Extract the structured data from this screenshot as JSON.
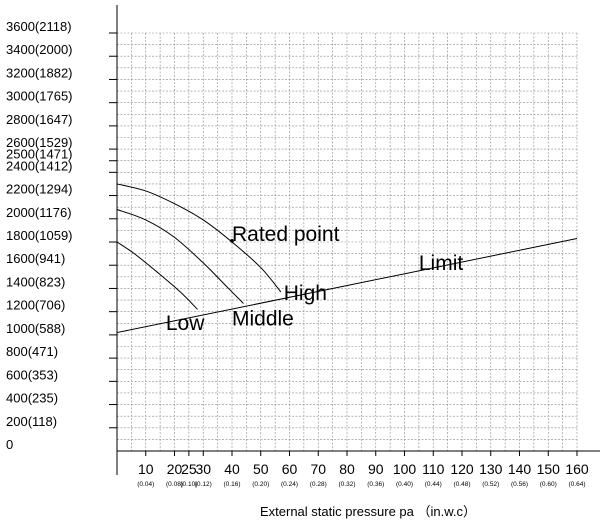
{
  "chart_data": {
    "type": "line",
    "title": "",
    "xlabel": "External static pressure pa （in.w.c）",
    "ylabel": "",
    "xlim": [
      0,
      160
    ],
    "ylim": [
      0,
      3600
    ],
    "grid": true,
    "x_ticks": [
      {
        "value": 10,
        "label": "10",
        "sub": "(0.04)"
      },
      {
        "value": 20,
        "label": "20",
        "sub": "(0.08)"
      },
      {
        "value": 25,
        "label": "25",
        "sub": "(0.10)"
      },
      {
        "value": 30,
        "label": "30",
        "sub": "(0.12)"
      },
      {
        "value": 40,
        "label": "40",
        "sub": "(0.16)"
      },
      {
        "value": 50,
        "label": "50",
        "sub": "(0.20)"
      },
      {
        "value": 60,
        "label": "60",
        "sub": "(0.24)"
      },
      {
        "value": 70,
        "label": "70",
        "sub": "(0.28)"
      },
      {
        "value": 80,
        "label": "80",
        "sub": "(0.32)"
      },
      {
        "value": 90,
        "label": "90",
        "sub": "(0.36)"
      },
      {
        "value": 100,
        "label": "100",
        "sub": "(0.40)"
      },
      {
        "value": 110,
        "label": "110",
        "sub": "(0.44)"
      },
      {
        "value": 120,
        "label": "120",
        "sub": "(0.48)"
      },
      {
        "value": 130,
        "label": "130",
        "sub": "(0.52)"
      },
      {
        "value": 140,
        "label": "140",
        "sub": "(0.56)"
      },
      {
        "value": 150,
        "label": "150",
        "sub": "(0.60)"
      },
      {
        "value": 160,
        "label": "160",
        "sub": "(0.64)"
      }
    ],
    "y_ticks": [
      {
        "value": 0,
        "label": "0"
      },
      {
        "value": 200,
        "label": "200(118)"
      },
      {
        "value": 400,
        "label": "400(235)"
      },
      {
        "value": 600,
        "label": "600(353)"
      },
      {
        "value": 800,
        "label": "800(471)"
      },
      {
        "value": 1000,
        "label": "1000(588)"
      },
      {
        "value": 1200,
        "label": "1200(706)"
      },
      {
        "value": 1400,
        "label": "1400(823)"
      },
      {
        "value": 1600,
        "label": "1600(941)"
      },
      {
        "value": 1800,
        "label": "1800(1059)"
      },
      {
        "value": 2000,
        "label": "2000(1176)"
      },
      {
        "value": 2200,
        "label": "2200(1294)"
      },
      {
        "value": 2400,
        "label": "2400(1412)"
      },
      {
        "value": 2500,
        "label": "2500(1471)"
      },
      {
        "value": 2600,
        "label": "2600(1529)"
      },
      {
        "value": 2800,
        "label": "2800(1647)"
      },
      {
        "value": 3000,
        "label": "3000(1765)"
      },
      {
        "value": 3200,
        "label": "3200(1882)"
      },
      {
        "value": 3400,
        "label": "3400(2000)"
      },
      {
        "value": 3600,
        "label": "3600(2118)"
      }
    ],
    "series": [
      {
        "name": "Low",
        "points": [
          [
            0,
            1800
          ],
          [
            6,
            1700
          ],
          [
            14,
            1540
          ],
          [
            22,
            1370
          ],
          [
            28,
            1220
          ]
        ]
      },
      {
        "name": "Middle",
        "points": [
          [
            0,
            2080
          ],
          [
            10,
            1990
          ],
          [
            20,
            1840
          ],
          [
            30,
            1620
          ],
          [
            38,
            1420
          ],
          [
            44,
            1270
          ]
        ]
      },
      {
        "name": "High",
        "points": [
          [
            0,
            2300
          ],
          [
            10,
            2240
          ],
          [
            20,
            2130
          ],
          [
            30,
            1990
          ],
          [
            40,
            1800
          ],
          [
            50,
            1580
          ],
          [
            57,
            1370
          ]
        ]
      },
      {
        "name": "Limit",
        "points": [
          [
            0,
            1020
          ],
          [
            160,
            1830
          ]
        ]
      }
    ],
    "rated_point": {
      "x": 40,
      "y": 1810
    },
    "annotations": [
      {
        "text": "Rated point",
        "x": 40,
        "y": 1810
      },
      {
        "text": "Limit",
        "x": 105,
        "y": 1560
      },
      {
        "text": "High",
        "x": 58,
        "y": 1300
      },
      {
        "text": "Middle",
        "x": 40,
        "y": 1080
      },
      {
        "text": "Low",
        "x": 17,
        "y": 1040
      }
    ]
  }
}
